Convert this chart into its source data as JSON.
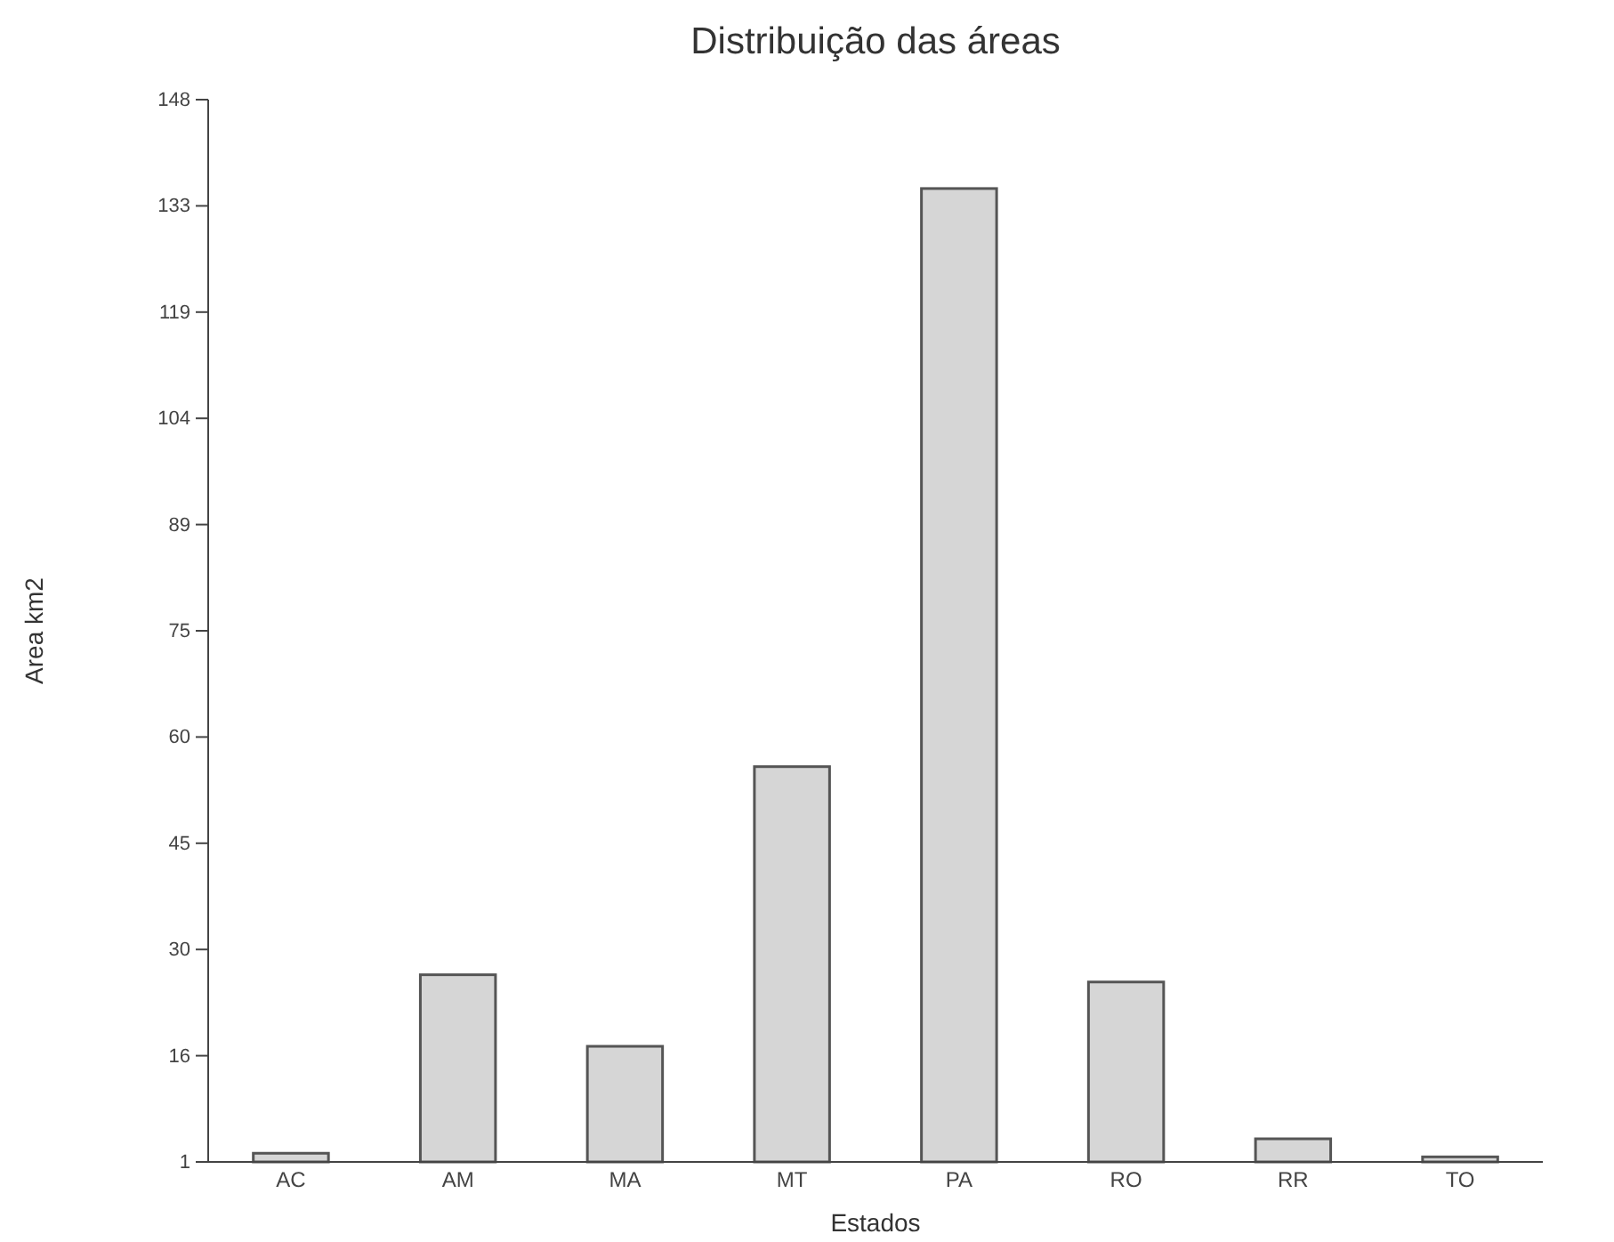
{
  "chart_data": {
    "type": "bar",
    "title": "Distribuição das áreas",
    "xlabel": "Estados",
    "ylabel": "Area km2",
    "categories": [
      "AC",
      "AM",
      "MA",
      "MT",
      "PA",
      "RO",
      "RR",
      "TO"
    ],
    "values": [
      2.2,
      26.9,
      17,
      55.7,
      135.7,
      25.9,
      4.2,
      1.7
    ],
    "color": "#d6d6d6",
    "ylim": [
      1,
      148
    ],
    "yticks": [
      1,
      {
        "value": 15.7,
        "label": "16"
      },
      {
        "value": 30.4,
        "label": "30"
      },
      {
        "value": 45.1,
        "label": "45"
      },
      {
        "value": 59.8,
        "label": "60"
      },
      {
        "value": 74.5,
        "label": "75"
      },
      {
        "value": 89.2,
        "label": "89"
      },
      {
        "value": 103.9,
        "label": "104"
      },
      {
        "value": 118.6,
        "label": "119"
      },
      {
        "value": 133.3,
        "label": "133"
      },
      148
    ],
    "grid": false
  }
}
